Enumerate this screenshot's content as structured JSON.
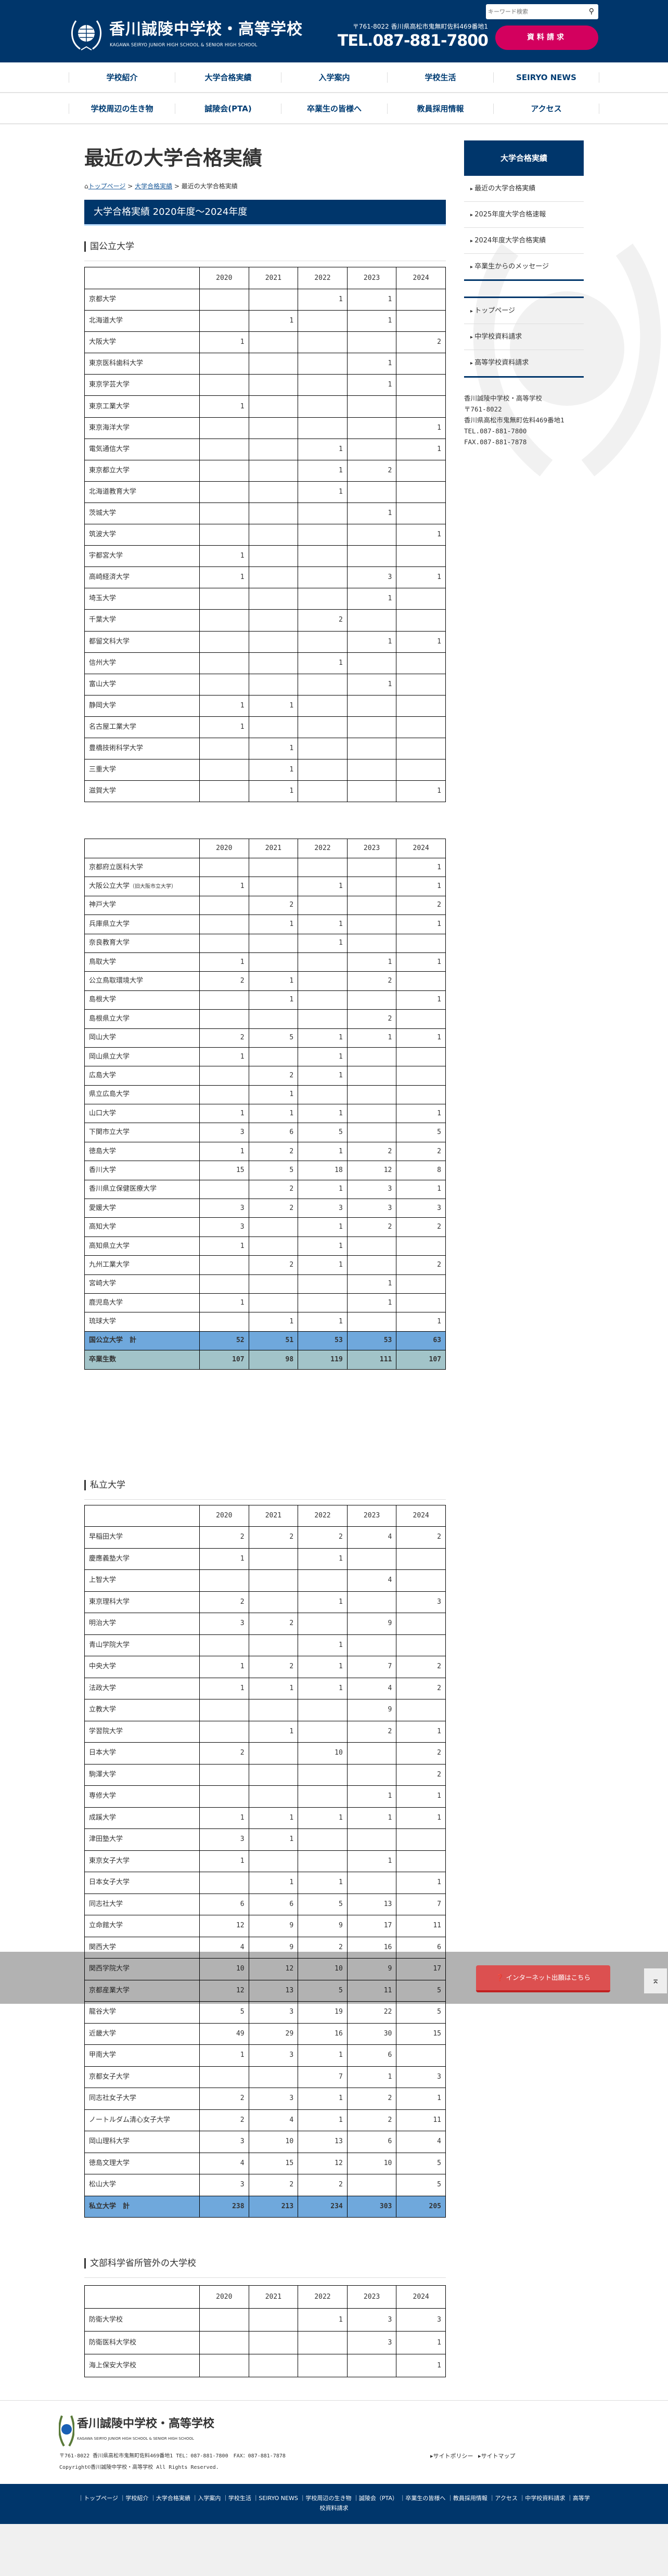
{
  "header": {
    "title": "香川誠陵中学校・高等学校",
    "subtitle": "KAGAWA SEIRYO JUNIOR HIGH SCHOOL & SENIOR HIGH SCHOOL",
    "search_placeholder": "キーワード検索",
    "address": "〒761-8022 香川県高松市鬼無町佐料469番地1",
    "tel": "TEL.087-881-7800",
    "request_button": "資料請求"
  },
  "nav": {
    "row1": [
      "学校紹介",
      "大学合格実績",
      "入学案内",
      "学校生活",
      "SEIRYO NEWS"
    ],
    "row2": [
      "学校周辺の生き物",
      "誠陵会(PTA)",
      "卒業生の皆様へ",
      "教員採用情報",
      "アクセス"
    ]
  },
  "page": {
    "title": "最近の大学合格実績",
    "breadcrumb": [
      "トップページ",
      "大学合格実績",
      "最近の大学合格実績"
    ],
    "section_title": "大学合格実績 2020年度～2024年度"
  },
  "years": [
    "2020",
    "2021",
    "2022",
    "2023",
    "2024"
  ],
  "sections": [
    {
      "heading": "国公立大学",
      "tables": [
        {
          "rows": [
            [
              "京都大学",
              "",
              "",
              "1",
              "1",
              ""
            ],
            [
              "北海道大学",
              "",
              "1",
              "",
              "1",
              ""
            ],
            [
              "大阪大学",
              "1",
              "",
              "",
              "",
              "2"
            ],
            [
              "東京医科歯科大学",
              "",
              "",
              "",
              "1",
              ""
            ],
            [
              "東京学芸大学",
              "",
              "",
              "",
              "1",
              ""
            ],
            [
              "東京工業大学",
              "1",
              "",
              "",
              "",
              ""
            ],
            [
              "東京海洋大学",
              "",
              "",
              "",
              "",
              "1"
            ],
            [
              "電気通信大学",
              "",
              "",
              "1",
              "",
              "1"
            ],
            [
              "東京都立大学",
              "",
              "",
              "1",
              "2",
              ""
            ],
            [
              "北海道教育大学",
              "",
              "",
              "1",
              "",
              ""
            ],
            [
              "茨城大学",
              "",
              "",
              "",
              "1",
              ""
            ],
            [
              "筑波大学",
              "",
              "",
              "",
              "",
              "1"
            ],
            [
              "宇都宮大学",
              "1",
              "",
              "",
              "",
              ""
            ],
            [
              "高崎経済大学",
              "1",
              "",
              "",
              "3",
              "1"
            ],
            [
              "埼玉大学",
              "",
              "",
              "",
              "1",
              ""
            ],
            [
              "千葉大学",
              "",
              "",
              "2",
              "",
              ""
            ],
            [
              "都留文科大学",
              "",
              "",
              "",
              "1",
              "1"
            ],
            [
              "信州大学",
              "",
              "",
              "1",
              "",
              ""
            ],
            [
              "富山大学",
              "",
              "",
              "",
              "1",
              ""
            ],
            [
              "静岡大学",
              "1",
              "1",
              "",
              "",
              ""
            ],
            [
              "名古屋工業大学",
              "1",
              "",
              "",
              "",
              ""
            ],
            [
              "豊橋技術科学大学",
              "",
              "1",
              "",
              "",
              ""
            ],
            [
              "三重大学",
              "",
              "1",
              "",
              "",
              ""
            ],
            [
              "滋賀大学",
              "",
              "1",
              "",
              "",
              "1"
            ]
          ]
        },
        {
          "rows": [
            [
              "京都府立医科大学",
              "",
              "",
              "",
              "",
              "1"
            ],
            [
              "大阪公立大学",
              "1",
              "",
              "1",
              "",
              "1"
            ],
            [
              "神戸大学",
              "",
              "2",
              "",
              "",
              "2"
            ],
            [
              "兵庫県立大学",
              "",
              "1",
              "1",
              "",
              "1"
            ],
            [
              "奈良教育大学",
              "",
              "",
              "1",
              "",
              ""
            ],
            [
              "鳥取大学",
              "1",
              "",
              "",
              "1",
              "1"
            ],
            [
              "公立鳥取環境大学",
              "2",
              "1",
              "",
              "2",
              ""
            ],
            [
              "島根大学",
              "",
              "1",
              "",
              "",
              "1"
            ],
            [
              "島根県立大学",
              "",
              "",
              "",
              "2",
              ""
            ],
            [
              "岡山大学",
              "2",
              "5",
              "1",
              "1",
              "1"
            ],
            [
              "岡山県立大学",
              "1",
              "",
              "1",
              "",
              ""
            ],
            [
              "広島大学",
              "",
              "2",
              "1",
              "",
              ""
            ],
            [
              "県立広島大学",
              "",
              "1",
              "",
              "",
              ""
            ],
            [
              "山口大学",
              "1",
              "1",
              "1",
              "",
              "1"
            ],
            [
              "下関市立大学",
              "3",
              "6",
              "5",
              "",
              "5"
            ],
            [
              "徳島大学",
              "1",
              "2",
              "1",
              "2",
              "2"
            ],
            [
              "香川大学",
              "15",
              "5",
              "18",
              "12",
              "8"
            ],
            [
              "香川県立保健医療大学",
              "",
              "2",
              "1",
              "3",
              "1"
            ],
            [
              "愛媛大学",
              "3",
              "2",
              "3",
              "3",
              "3"
            ],
            [
              "高知大学",
              "3",
              "",
              "1",
              "2",
              "2"
            ],
            [
              "高知県立大学",
              "1",
              "",
              "1",
              "",
              ""
            ],
            [
              "九州工業大学",
              "",
              "2",
              "1",
              "",
              "2"
            ],
            [
              "宮崎大学",
              "",
              "",
              "",
              "1",
              ""
            ],
            [
              "鹿児島大学",
              "1",
              "",
              "",
              "1",
              ""
            ],
            [
              "琉球大学",
              "",
              "1",
              "1",
              "",
              "1"
            ]
          ],
          "note_row": 1,
          "note": "（旧大阪市立大学）",
          "totals": [
            [
              "国公立大学　計",
              "52",
              "51",
              "53",
              "53",
              "63"
            ]
          ],
          "graduates": [
            "卒業生数",
            "107",
            "98",
            "119",
            "111",
            "107"
          ]
        }
      ]
    },
    {
      "heading": "私立大学",
      "tables": [
        {
          "rows": [
            [
              "早稲田大学",
              "2",
              "2",
              "2",
              "4",
              "2"
            ],
            [
              "慶應義塾大学",
              "1",
              "",
              "1",
              "",
              ""
            ],
            [
              "上智大学",
              "",
              "",
              "",
              "4",
              ""
            ],
            [
              "東京理科大学",
              "2",
              "",
              "1",
              "",
              "3"
            ],
            [
              "明治大学",
              "3",
              "2",
              "",
              "9",
              ""
            ],
            [
              "青山学院大学",
              "",
              "",
              "1",
              "",
              ""
            ],
            [
              "中央大学",
              "1",
              "2",
              "1",
              "7",
              "2"
            ],
            [
              "法政大学",
              "1",
              "1",
              "1",
              "4",
              "2"
            ],
            [
              "立教大学",
              "",
              "",
              "",
              "9",
              ""
            ],
            [
              "学習院大学",
              "",
              "1",
              "",
              "2",
              "1"
            ],
            [
              "日本大学",
              "2",
              "",
              "10",
              "",
              "2"
            ],
            [
              "駒澤大学",
              "",
              "",
              "",
              "",
              "2"
            ],
            [
              "専修大学",
              "",
              "",
              "",
              "1",
              "1"
            ],
            [
              "成蹊大学",
              "1",
              "1",
              "1",
              "1",
              "1"
            ],
            [
              "津田塾大学",
              "3",
              "1",
              "",
              "",
              ""
            ],
            [
              "東京女子大学",
              "1",
              "",
              "",
              "1",
              ""
            ],
            [
              "日本女子大学",
              "",
              "1",
              "1",
              "",
              "1"
            ],
            [
              "同志社大学",
              "6",
              "6",
              "5",
              "13",
              "7"
            ],
            [
              "立命館大学",
              "12",
              "9",
              "9",
              "17",
              "11"
            ],
            [
              "関西大学",
              "4",
              "9",
              "2",
              "16",
              "6"
            ],
            [
              "関西学院大学",
              "10",
              "12",
              "10",
              "9",
              "17"
            ],
            [
              "京都産業大学",
              "12",
              "13",
              "5",
              "11",
              "5"
            ],
            [
              "龍谷大学",
              "5",
              "3",
              "19",
              "22",
              "5"
            ],
            [
              "近畿大学",
              "49",
              "29",
              "16",
              "30",
              "15"
            ],
            [
              "甲南大学",
              "1",
              "3",
              "1",
              "6",
              ""
            ],
            [
              "京都女子大学",
              "",
              "",
              "7",
              "1",
              "3"
            ],
            [
              "同志社女子大学",
              "2",
              "3",
              "1",
              "2",
              "1"
            ],
            [
              "ノートルダム清心女子大学",
              "2",
              "4",
              "1",
              "2",
              "11"
            ],
            [
              "岡山理科大学",
              "3",
              "10",
              "13",
              "6",
              "4"
            ],
            [
              "徳島文理大学",
              "4",
              "15",
              "12",
              "10",
              "5"
            ],
            [
              "松山大学",
              "3",
              "2",
              "2",
              "",
              "5"
            ]
          ],
          "totals": [
            [
              "私立大学　計",
              "238",
              "213",
              "234",
              "303",
              "205"
            ]
          ]
        }
      ]
    },
    {
      "heading": "文部科学省所管外の大学校",
      "tables": [
        {
          "rows": [
            [
              "防衛大学校",
              "",
              "",
              "1",
              "3",
              "3"
            ],
            [
              "防衛医科大学校",
              "",
              "",
              "",
              "3",
              "1"
            ],
            [
              "海上保安大学校",
              "",
              "",
              "",
              "",
              "1"
            ]
          ]
        }
      ]
    }
  ],
  "sidebar": {
    "title": "大学合格実績",
    "items": [
      "最近の大学合格実績",
      "2025年度大学合格速報",
      "2024年度大学合格実績",
      "卒業生からのメッセージ"
    ],
    "links": [
      "トップページ",
      "中学校資料請求",
      "高等学校資料請求"
    ],
    "address": "香川誠陵中学校・高等学校\n〒761-8022\n香川県高松市鬼無町佐料469番地1\nTEL.087-881-7800\nFAX.087-881-7878"
  },
  "floating": {
    "net_button": "インターネット出願はこちら",
    "pagetop": "⌅"
  },
  "footer": {
    "title": "香川誠陵中学校・高等学校",
    "subtitle": "KAGAWA SEIRYO JUNIOR HIGH SCHOOL & SENIOR HIGH SCHOOL",
    "address": "〒761-8022 香川県高松市鬼無町佐料469番地1 TEL：087-881-7800　FAX：087-881-7878",
    "copyright": "Copyright©香川誠陵中学校・高等学校 All Rights Reserved.",
    "links": [
      "サイトポリシー",
      "サイトマップ"
    ],
    "nav": [
      "トップページ",
      "学校紹介",
      "大学合格実績",
      "入学案内",
      "学校生活",
      "SEIRYO NEWS",
      "学校周辺の生き物",
      "誠陵会（PTA）",
      "卒業生の皆様へ",
      "教員採用情報",
      "アクセス",
      "中学校資料請求",
      "高等学校資料請求"
    ]
  },
  "colors": {
    "navy": "#00366b",
    "accent": "#d3005e",
    "total_row": "#6fa8dc",
    "graduates_row": "#a2c4c9",
    "net_button": "#dc5050"
  }
}
